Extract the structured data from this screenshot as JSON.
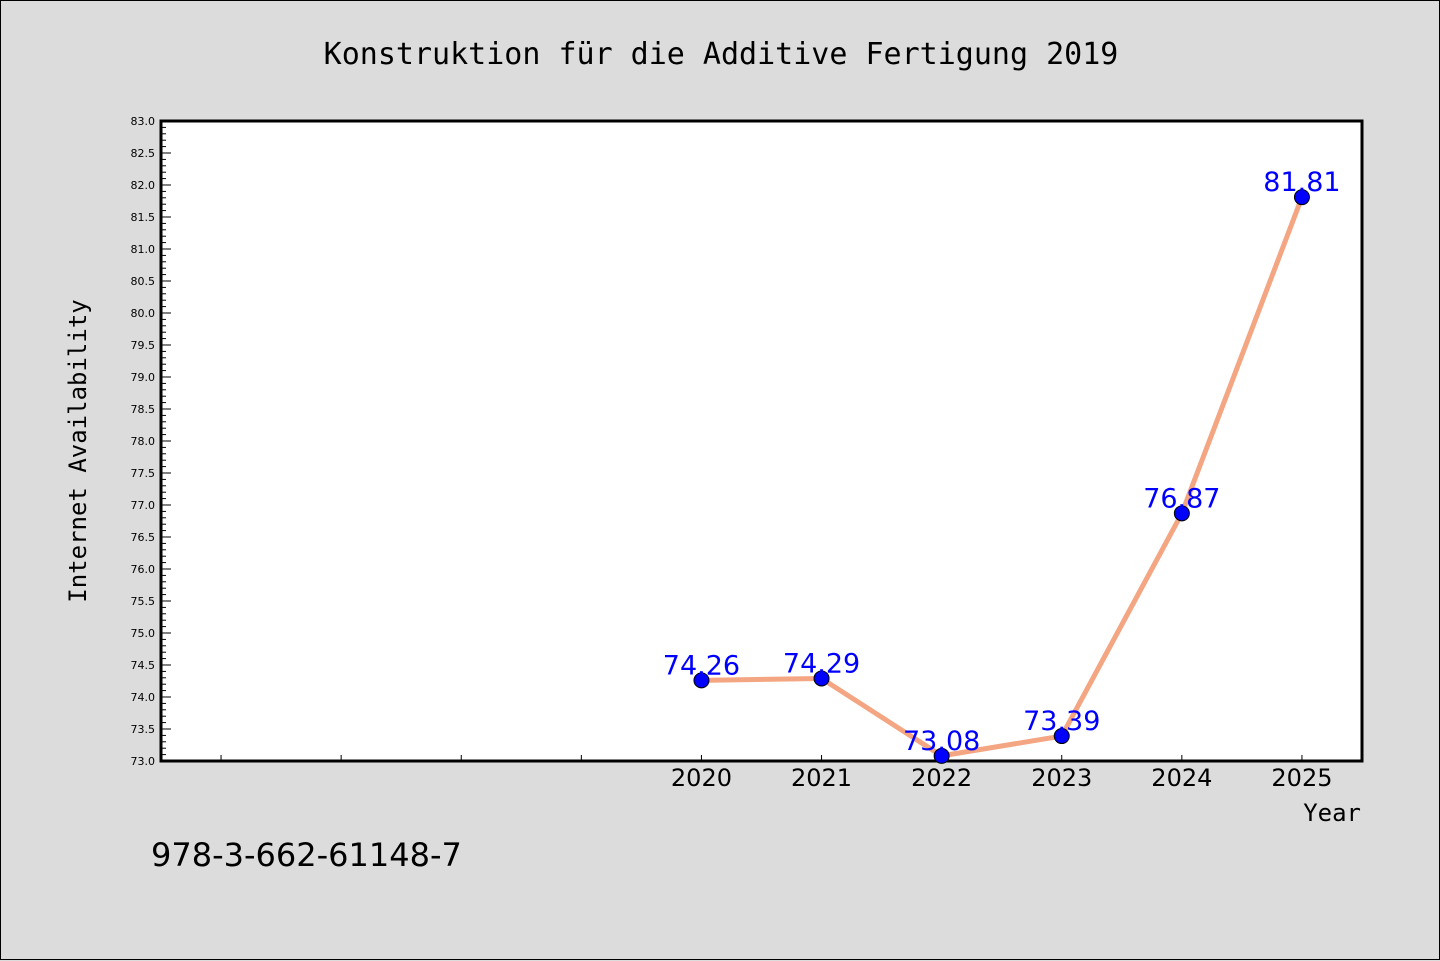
{
  "chart_data": {
    "type": "line",
    "title": "Konstruktion für die Additive Fertigung 2019",
    "xlabel": "Year",
    "ylabel": "Internet Availability",
    "x": [
      "2020",
      "2021",
      "2022",
      "2023",
      "2024",
      "2025"
    ],
    "series": [
      {
        "values": [
          74.26,
          74.29,
          73.08,
          73.39,
          76.87,
          81.81
        ]
      }
    ],
    "data_labels": [
      "74.26",
      "74.29",
      "73.08",
      "73.39",
      "76.87",
      "81.81"
    ],
    "ylim": [
      73.0,
      83.0
    ],
    "xlim": [
      2015.5,
      2025.5
    ],
    "yticks": [
      "73.0",
      "73.5",
      "74.0",
      "74.5",
      "75.0",
      "75.5",
      "76.0",
      "76.5",
      "77.0",
      "77.5",
      "78.0",
      "78.5",
      "79.0",
      "79.5",
      "80.0",
      "80.5",
      "81.0",
      "81.5",
      "82.0",
      "82.5",
      "83.0"
    ],
    "grid": false,
    "legend": "none",
    "colors": {
      "line": "#f4a582",
      "marker": "#0000ff",
      "label": "#0000ff",
      "background": "#dcdcdc",
      "plot_background": "#ffffff"
    }
  },
  "footer": {
    "isbn": "978-3-662-61148-7"
  }
}
